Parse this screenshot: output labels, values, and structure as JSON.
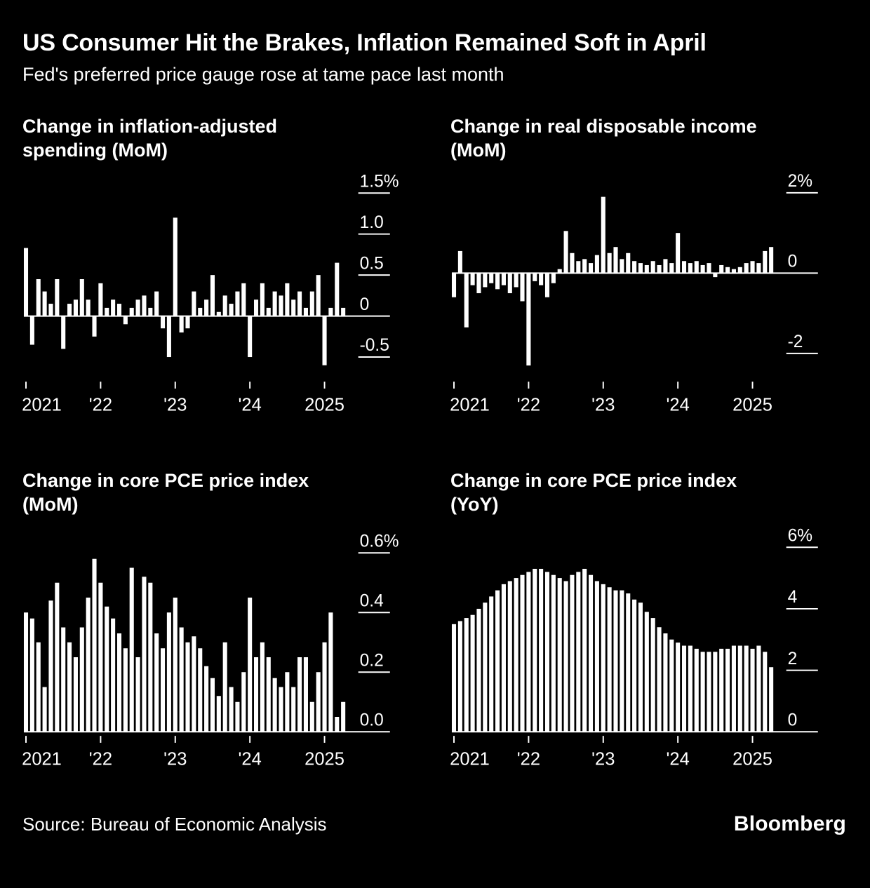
{
  "header": {
    "title": "US Consumer Hit the Brakes, Inflation Remained Soft in April",
    "subtitle": "Fed's preferred price gauge rose at tame pace last month"
  },
  "footer": {
    "source": "Source: Bureau of Economic Analysis",
    "brand": "Bloomberg"
  },
  "colors": {
    "background": "#000000",
    "bar": "#ffffff",
    "text": "#ffffff",
    "axis": "#ffffff"
  },
  "chart_data": [
    {
      "id": "inflation-adjusted-spending-mom",
      "type": "bar",
      "title": "Change in inflation-adjusted spending (MoM)",
      "title_lines": [
        "Change in inflation-adjusted",
        "spending (MoM)"
      ],
      "unit": "%",
      "x_start": "2021-01",
      "frequency": "monthly",
      "ylim": [
        -0.75,
        1.65
      ],
      "y_ticks": [
        {
          "value": 1.5,
          "label": "1.5%"
        },
        {
          "value": 1.0,
          "label": "1.0"
        },
        {
          "value": 0.5,
          "label": "0.5"
        },
        {
          "value": 0,
          "label": "0"
        },
        {
          "value": -0.5,
          "label": "-0.5"
        }
      ],
      "x_ticks": [
        {
          "index": 0,
          "label": "2021"
        },
        {
          "index": 12,
          "label": "'22"
        },
        {
          "index": 24,
          "label": "'23"
        },
        {
          "index": 36,
          "label": "'24"
        },
        {
          "index": 48,
          "label": "2025"
        }
      ],
      "values": [
        0.83,
        -0.35,
        0.45,
        0.3,
        0.15,
        0.45,
        -0.4,
        0.15,
        0.2,
        0.45,
        0.2,
        -0.25,
        0.4,
        0.1,
        0.2,
        0.15,
        -0.1,
        0.1,
        0.2,
        0.25,
        0.1,
        0.3,
        -0.15,
        -0.5,
        1.2,
        -0.2,
        -0.15,
        0.3,
        0.1,
        0.2,
        0.5,
        0.05,
        0.25,
        0.15,
        0.3,
        0.4,
        -0.5,
        0.2,
        0.4,
        0.1,
        0.3,
        0.25,
        0.4,
        0.2,
        0.3,
        0.1,
        0.3,
        0.5,
        -0.6,
        0.1,
        0.65,
        0.1
      ]
    },
    {
      "id": "real-disposable-income-mom",
      "type": "bar",
      "title": "Change in real disposable income (MoM)",
      "title_lines": [
        "Change in real disposable income",
        "(MoM)"
      ],
      "unit": "%",
      "x_start": "2021-01",
      "frequency": "monthly",
      "ylim": [
        -2.6,
        2.3
      ],
      "y_ticks": [
        {
          "value": 2,
          "label": "2%"
        },
        {
          "value": 0,
          "label": "0"
        },
        {
          "value": -2,
          "label": "-2"
        }
      ],
      "x_ticks": [
        {
          "index": 0,
          "label": "2021"
        },
        {
          "index": 12,
          "label": "'22"
        },
        {
          "index": 24,
          "label": "'23"
        },
        {
          "index": 36,
          "label": "'24"
        },
        {
          "index": 48,
          "label": "2025"
        }
      ],
      "values": [
        -0.6,
        0.55,
        -1.35,
        -0.3,
        -0.5,
        -0.35,
        -0.25,
        -0.4,
        -0.3,
        -0.5,
        -0.35,
        -0.7,
        -2.3,
        -0.2,
        -0.3,
        -0.6,
        -0.25,
        0.1,
        1.05,
        0.5,
        0.3,
        0.35,
        0.25,
        0.45,
        1.9,
        0.5,
        0.65,
        0.35,
        0.5,
        0.3,
        0.25,
        0.2,
        0.3,
        0.2,
        0.35,
        0.25,
        1.0,
        0.3,
        0.25,
        0.3,
        0.2,
        0.25,
        -0.1,
        0.2,
        0.15,
        0.1,
        0.15,
        0.25,
        0.3,
        0.25,
        0.55,
        0.65
      ]
    },
    {
      "id": "core-pce-price-index-mom",
      "type": "bar",
      "title": "Change in core PCE price index (MoM)",
      "title_lines": [
        "Change in core PCE price index",
        "(MoM)"
      ],
      "unit": "%",
      "x_start": "2021-01",
      "frequency": "monthly",
      "ylim": [
        0,
        0.66
      ],
      "y_ticks": [
        {
          "value": 0.6,
          "label": "0.6%"
        },
        {
          "value": 0.4,
          "label": "0.4"
        },
        {
          "value": 0.2,
          "label": "0.2"
        },
        {
          "value": 0,
          "label": "0.0"
        }
      ],
      "x_ticks": [
        {
          "index": 0,
          "label": "2021"
        },
        {
          "index": 12,
          "label": "'22"
        },
        {
          "index": 24,
          "label": "'23"
        },
        {
          "index": 36,
          "label": "'24"
        },
        {
          "index": 48,
          "label": "2025"
        }
      ],
      "values": [
        0.4,
        0.38,
        0.3,
        0.15,
        0.44,
        0.5,
        0.35,
        0.3,
        0.25,
        0.35,
        0.45,
        0.58,
        0.5,
        0.42,
        0.38,
        0.33,
        0.28,
        0.55,
        0.25,
        0.52,
        0.5,
        0.33,
        0.28,
        0.4,
        0.45,
        0.35,
        0.3,
        0.32,
        0.28,
        0.22,
        0.18,
        0.12,
        0.3,
        0.15,
        0.1,
        0.2,
        0.45,
        0.25,
        0.3,
        0.25,
        0.18,
        0.15,
        0.2,
        0.15,
        0.25,
        0.25,
        0.1,
        0.2,
        0.3,
        0.4,
        0.05,
        0.1
      ]
    },
    {
      "id": "core-pce-price-index-yoy",
      "type": "bar",
      "title": "Change in core PCE price index (YoY)",
      "title_lines": [
        "Change in core PCE price index",
        "(YoY)"
      ],
      "unit": "%",
      "x_start": "2021-01",
      "frequency": "monthly",
      "ylim": [
        0,
        6.4
      ],
      "y_ticks": [
        {
          "value": 6,
          "label": "6%"
        },
        {
          "value": 4,
          "label": "4"
        },
        {
          "value": 2,
          "label": "2"
        },
        {
          "value": 0,
          "label": "0"
        }
      ],
      "x_ticks": [
        {
          "index": 0,
          "label": "2021"
        },
        {
          "index": 12,
          "label": "'22"
        },
        {
          "index": 24,
          "label": "'23"
        },
        {
          "index": 36,
          "label": "'24"
        },
        {
          "index": 48,
          "label": "2025"
        }
      ],
      "values": [
        3.5,
        3.6,
        3.7,
        3.8,
        4.0,
        4.2,
        4.4,
        4.6,
        4.8,
        4.9,
        5.0,
        5.1,
        5.2,
        5.3,
        5.3,
        5.2,
        5.1,
        5.0,
        4.9,
        5.1,
        5.2,
        5.3,
        5.1,
        4.9,
        4.8,
        4.7,
        4.6,
        4.6,
        4.5,
        4.3,
        4.2,
        3.9,
        3.7,
        3.4,
        3.2,
        3.0,
        2.9,
        2.8,
        2.8,
        2.7,
        2.6,
        2.6,
        2.6,
        2.7,
        2.7,
        2.8,
        2.8,
        2.8,
        2.7,
        2.8,
        2.6,
        2.1
      ]
    }
  ]
}
